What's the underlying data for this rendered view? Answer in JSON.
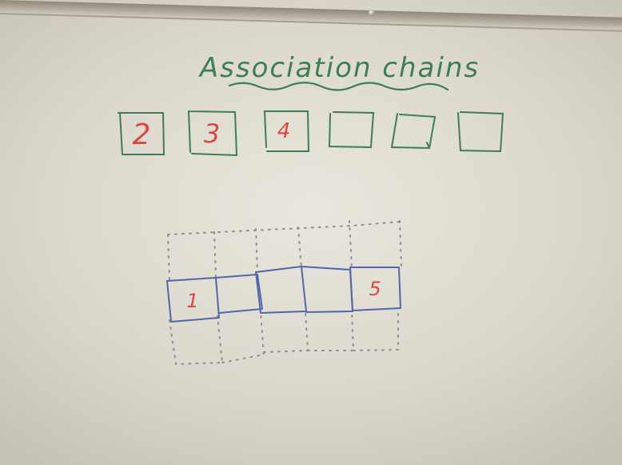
{
  "title": "Association chains",
  "top_row": {
    "boxes": [
      {
        "label": "2"
      },
      {
        "label": "3"
      },
      {
        "label": "4"
      },
      {
        "label": ""
      },
      {
        "label": ""
      },
      {
        "label": ""
      }
    ]
  },
  "chain": {
    "boxes": [
      {
        "label": "1"
      },
      {
        "label": ""
      },
      {
        "label": ""
      },
      {
        "label": ""
      },
      {
        "label": "5"
      }
    ]
  },
  "colors": {
    "green_marker": "#3f7d52",
    "red_marker": "#d9473f",
    "blue_marker": "#4f68a8",
    "dotted_marker": "#8d8d96"
  }
}
